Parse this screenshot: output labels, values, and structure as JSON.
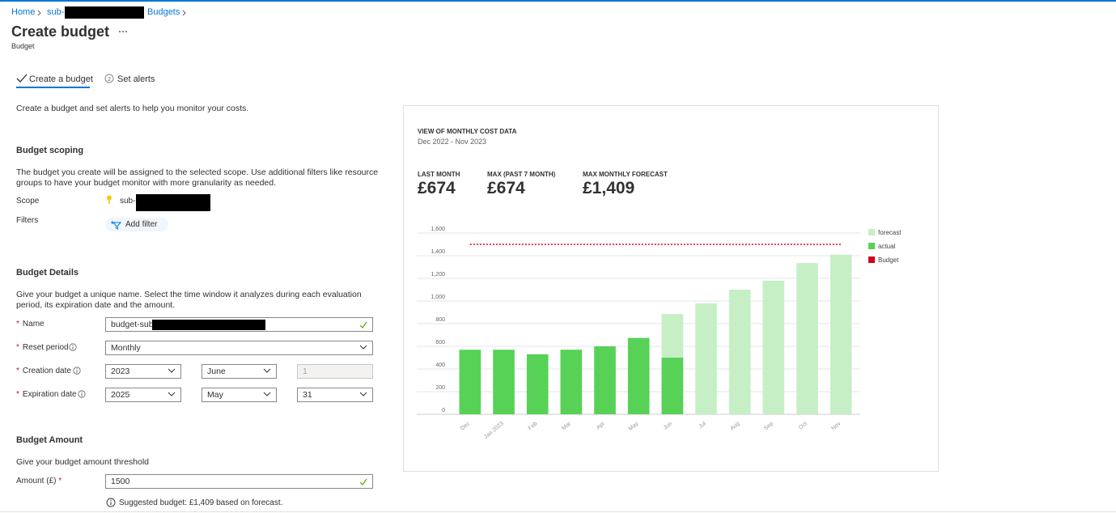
{
  "breadcrumb": [
    "Home",
    "sub-",
    "Budgets"
  ],
  "header": {
    "title": "Create budget",
    "subtitle": "Budget"
  },
  "tabs": [
    {
      "label": "Create a budget"
    },
    {
      "step": "2",
      "label": "Set alerts"
    }
  ],
  "intro": "Create a budget and set alerts to help you monitor your costs.",
  "scoping": {
    "title": "Budget scoping",
    "description": "The budget you create will be assigned to the selected scope. Use additional filters like resource groups to have your budget monitor with more granularity as needed.",
    "scope_label": "Scope",
    "scope_value": "sub-",
    "filters_label": "Filters",
    "add_filter": "Add filter"
  },
  "details": {
    "title": "Budget Details",
    "description": "Give your budget a unique name. Select the time window it analyzes during each evaluation period, its expiration date and the amount.",
    "required_mark": "*",
    "name_label": "Name",
    "name_value": "budget-sub",
    "reset_label": "Reset period",
    "reset_value": "Monthly",
    "creation_label": "Creation date",
    "creation_values": [
      "2023",
      "June",
      "1"
    ],
    "expiration_label": "Expiration date",
    "expiration_values": [
      "2025",
      "May",
      "31"
    ]
  },
  "amount": {
    "title": "Budget Amount",
    "description": "Give your budget amount threshold",
    "label": "Amount (£)",
    "value": "1500",
    "suggestion": "Suggested budget: £1,409 based on forecast."
  },
  "chart_panel": {
    "title": "VIEW OF MONTHLY COST DATA",
    "range": "Dec 2022 - Nov 2023",
    "kpis": [
      {
        "label": "LAST MONTH",
        "value": "£674"
      },
      {
        "label": "MAX (PAST 7 MONTH)",
        "value": "£674"
      },
      {
        "label": "MAX MONTHLY FORECAST",
        "value": "£1,409"
      }
    ]
  },
  "chart_data": {
    "type": "bar",
    "categories": [
      "Dec",
      "Jan 2023",
      "Feb",
      "Mar",
      "Apr",
      "May",
      "Jun",
      "Jul",
      "Aug",
      "Sep",
      "Oct",
      "Nov"
    ],
    "series": [
      {
        "name": "forecast",
        "color": "#c6efc6",
        "values": [
          null,
          null,
          null,
          null,
          null,
          null,
          885,
          980,
          1100,
          1180,
          1335,
          1409
        ]
      },
      {
        "name": "actual",
        "color": "#57d257",
        "values": [
          570,
          570,
          530,
          570,
          600,
          674,
          500,
          null,
          null,
          null,
          null,
          null
        ]
      },
      {
        "name": "Budget",
        "color": "#d0021b",
        "type": "line",
        "values": [
          1500,
          1500,
          1500,
          1500,
          1500,
          1500,
          1500,
          1500,
          1500,
          1500,
          1500,
          1500
        ]
      }
    ],
    "ylim": [
      0,
      1600
    ],
    "yticks": [
      0,
      200,
      400,
      600,
      800,
      {
        "value": 1000,
        "label": "1,000"
      },
      {
        "value": 1200,
        "label": "1,200"
      },
      {
        "value": 1400,
        "label": "1,400"
      },
      {
        "value": 1600,
        "label": "1,600"
      }
    ],
    "grid": true,
    "legend": "right"
  }
}
